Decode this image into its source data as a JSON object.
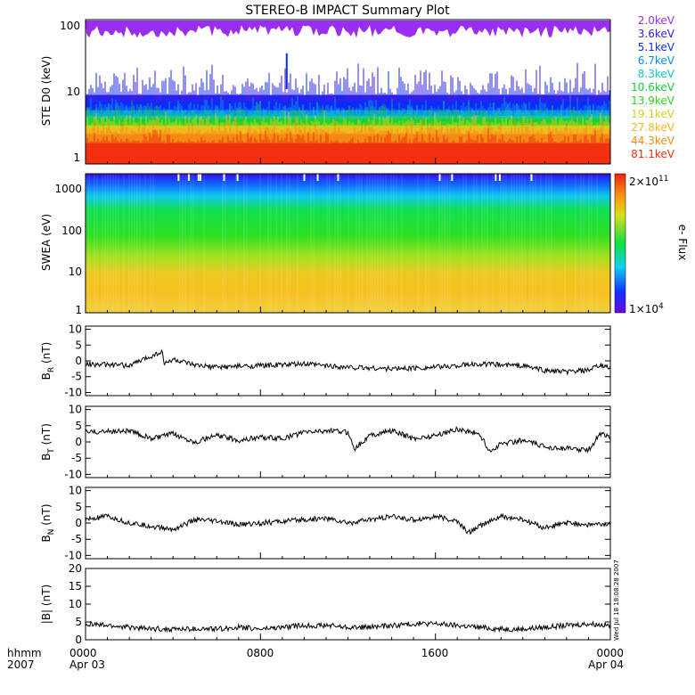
{
  "title": "STEREO-B IMPACT Summary Plot",
  "timestamp": "Wed Jul 18 18:08:28 2007",
  "x_axis": {
    "ticks": [
      "0000",
      "0800",
      "1600",
      "0000"
    ],
    "date_left": "Apr 03",
    "date_right": "Apr 04",
    "unit_label": "hhmm",
    "year_label": "2007"
  },
  "chart_data": [
    {
      "type": "line",
      "ylabel": "STE D0 (keV)",
      "y_scale": "log",
      "ylim": [
        1,
        100
      ],
      "y_ticks": [
        "1",
        "10",
        "100"
      ],
      "legend_placement": "right",
      "series": [
        {
          "name": "2.0keV",
          "color": "#9a2ef0",
          "level": 90
        },
        {
          "name": "3.6keV",
          "color": "#3a1ee6",
          "level": 10
        },
        {
          "name": "5.1keV",
          "color": "#0a2cf5",
          "level": 8
        },
        {
          "name": "6.7keV",
          "color": "#0a8cf5",
          "level": 6
        },
        {
          "name": "8.3keV",
          "color": "#11c8c8",
          "level": 5
        },
        {
          "name": "10.6keV",
          "color": "#15cf3a",
          "level": 4.5
        },
        {
          "name": "13.9keV",
          "color": "#31d51f",
          "level": 4
        },
        {
          "name": "19.1keV",
          "color": "#c8d51f",
          "level": 3.6
        },
        {
          "name": "27.8keV",
          "color": "#f7b51e",
          "level": 3.2
        },
        {
          "name": "44.3keV",
          "color": "#f38a13",
          "level": 2.7
        },
        {
          "name": "81.1keV",
          "color": "#f2300f",
          "level": 2.0
        }
      ]
    },
    {
      "type": "heatmap",
      "ylabel": "SWEA (eV)",
      "y_scale": "log",
      "ylim": [
        1,
        2000
      ],
      "y_ticks": [
        "1",
        "10",
        "100",
        "1000"
      ],
      "colorbar": {
        "label": "e- Flux",
        "max_label": "2×10",
        "max_exp": "11",
        "min_label": "1×10",
        "min_exp": "4"
      }
    },
    {
      "type": "line",
      "ylabel_main": "B",
      "ylabel_sub": "R",
      "ylabel_unit": "(nT)",
      "ylim": [
        -11,
        11
      ],
      "y_ticks": [
        "-10",
        "-5",
        "0",
        "5",
        "10"
      ],
      "x": [
        0,
        2,
        3.5,
        3.6,
        4,
        5,
        6,
        8,
        10,
        12,
        14,
        16,
        18,
        20,
        21,
        22,
        23,
        23.5,
        24
      ],
      "y": [
        -1,
        -1.5,
        3,
        -1,
        0.5,
        -1.5,
        -2,
        -1.5,
        -1,
        -2,
        -2.5,
        -2,
        -1,
        -1.5,
        -3,
        -3.5,
        -3,
        -1.5,
        -2
      ]
    },
    {
      "type": "line",
      "ylabel_main": "B",
      "ylabel_sub": "T",
      "ylabel_unit": "(nT)",
      "ylim": [
        -11,
        11
      ],
      "y_ticks": [
        "-10",
        "-5",
        "0",
        "5",
        "10"
      ],
      "x": [
        0,
        2,
        3,
        4,
        5,
        6,
        7,
        8,
        9,
        10,
        11,
        12,
        12.3,
        13,
        14,
        15,
        16,
        17,
        18,
        18.5,
        19,
        20,
        21,
        22,
        23,
        23.6,
        24
      ],
      "y": [
        3,
        3.5,
        1,
        2.5,
        0,
        2,
        0.5,
        1.5,
        1,
        3,
        3.5,
        3,
        -2,
        2,
        3.5,
        1,
        2,
        4,
        2.5,
        -3,
        -0.5,
        0.5,
        -1.5,
        -2,
        -2.5,
        3,
        1
      ]
    },
    {
      "type": "line",
      "ylabel_main": "B",
      "ylabel_sub": "N",
      "ylabel_unit": "(nT)",
      "ylim": [
        -11,
        11
      ],
      "y_ticks": [
        "-10",
        "-5",
        "0",
        "5",
        "10"
      ],
      "x": [
        0,
        1,
        2,
        3,
        4,
        5,
        6,
        7,
        8,
        9,
        10,
        11,
        12,
        13,
        14,
        15,
        16,
        17,
        17.5,
        18,
        19,
        20,
        21,
        22,
        23,
        24
      ],
      "y": [
        1,
        2,
        0,
        -1,
        -2,
        1,
        0.5,
        -0.5,
        0,
        0.5,
        1,
        1.5,
        0,
        1,
        2,
        1,
        2,
        0.5,
        -3,
        -1,
        2,
        1,
        -1.5,
        0,
        -0.5,
        -0.5
      ]
    },
    {
      "type": "line",
      "ylabel": "|B| (nT)",
      "ylim": [
        0,
        20
      ],
      "y_ticks": [
        "0",
        "5",
        "10",
        "15",
        "20"
      ],
      "x": [
        0,
        1,
        2,
        3,
        4,
        5,
        6,
        7,
        8,
        9,
        10,
        11,
        12,
        13,
        14,
        15,
        16,
        17,
        18,
        19,
        20,
        21,
        22,
        23,
        24
      ],
      "y": [
        4.5,
        4,
        3.5,
        3,
        3,
        3,
        3,
        3.5,
        3,
        3.5,
        4,
        4,
        3.5,
        3.5,
        4,
        4.5,
        4.5,
        4,
        3.5,
        3,
        3,
        3.5,
        4,
        4.5,
        4
      ]
    }
  ]
}
